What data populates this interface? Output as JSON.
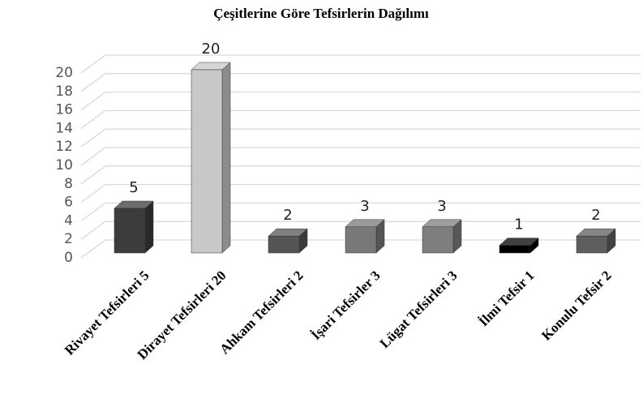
{
  "chart_data": {
    "type": "bar3d",
    "title": "Çeşitlerine Göre Tefsirlerin Dağılımı",
    "categories": [
      "Rivayet Tefsirleri 5",
      "Dirayet Tefsirleri 20",
      "Ahkam Tefsirleri 2",
      "İşari Tefsirler 3",
      "Lügat Tefsirleri 3",
      "İlmi Tefsir 1",
      "Konulu Tefsir 2"
    ],
    "values": [
      5,
      20,
      2,
      3,
      3,
      1,
      2
    ],
    "colors": [
      "#3c3c3c",
      "#c8c8c8",
      "#555555",
      "#787878",
      "#7e7e7e",
      "#000000",
      "#5e5e5e"
    ],
    "ylim": [
      0,
      20
    ],
    "yticks": [
      0,
      2,
      4,
      6,
      8,
      10,
      12,
      14,
      16,
      18,
      20
    ],
    "grid": true
  }
}
